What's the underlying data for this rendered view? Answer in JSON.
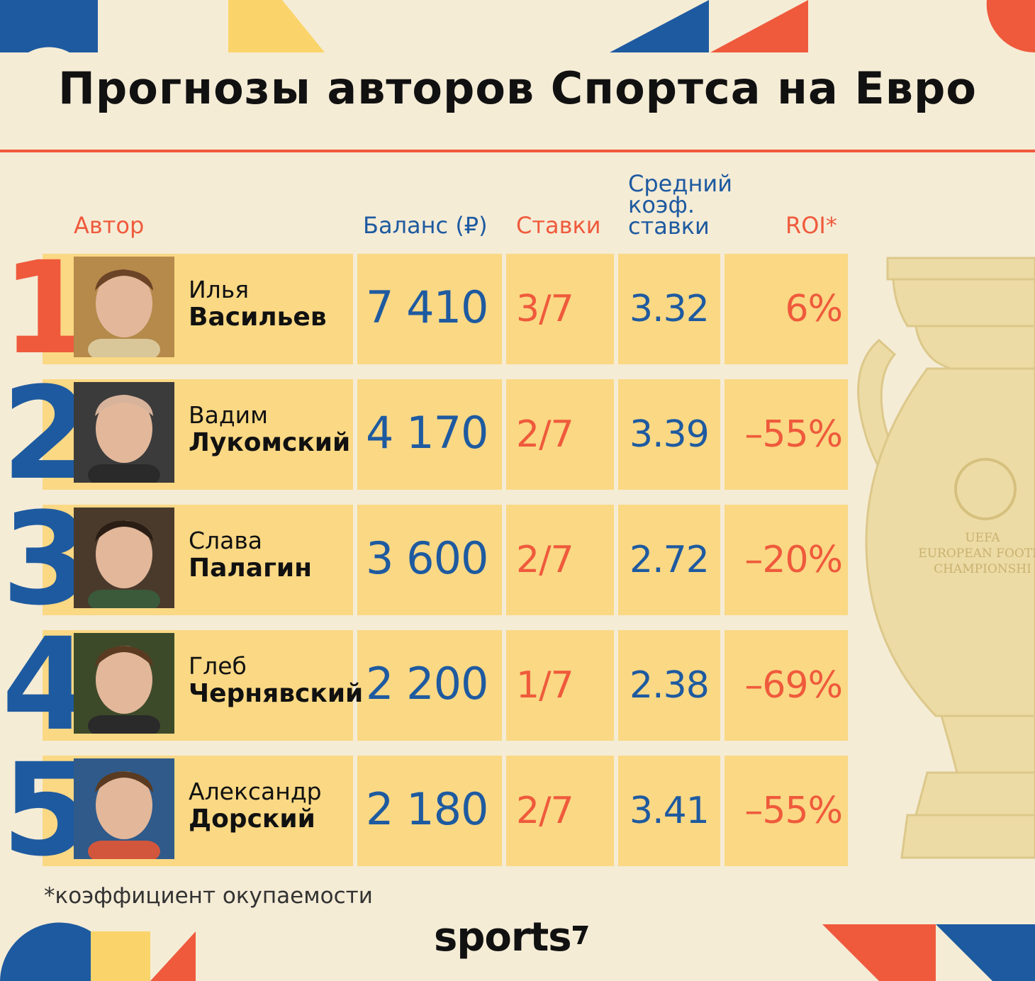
{
  "title": "Прогнозы авторов Спортса на Евро",
  "headers": {
    "author": "Автор",
    "balance": "Баланс (₽)",
    "bets": "Ставки",
    "avg_odds_1": "Средний",
    "avg_odds_2": "коэф.",
    "avg_odds_3": "ставки",
    "roi": "ROI*"
  },
  "rows": [
    {
      "rank": "1",
      "first_name": "Илья",
      "last_name": "Васильев",
      "balance": "7 410",
      "bets": "3/7",
      "odds": "3.32",
      "roi": "6%"
    },
    {
      "rank": "2",
      "first_name": "Вадим",
      "last_name": "Лукомский",
      "balance": "4 170",
      "bets": "2/7",
      "odds": "3.39",
      "roi": "–55%"
    },
    {
      "rank": "3",
      "first_name": "Слава",
      "last_name": "Палагин",
      "balance": "3 600",
      "bets": "2/7",
      "odds": "2.72",
      "roi": "–20%"
    },
    {
      "rank": "4",
      "first_name": "Глеб",
      "last_name": "Чернявский",
      "balance": "2 200",
      "bets": "1/7",
      "odds": "2.38",
      "roi": "–69%"
    },
    {
      "rank": "5",
      "first_name": "Александр",
      "last_name": "Дорский",
      "balance": "2 180",
      "bets": "2/7",
      "odds": "3.41",
      "roi": "–55%"
    }
  ],
  "footnote": "*коэффициент окупаемости",
  "logo": "sports",
  "trophy_text": [
    "UEFA",
    "EUROPEAN FOOTB",
    "CHAMPIONSHI"
  ],
  "colors": {
    "background": "#f5ecd6",
    "cell": "#fad884",
    "blue": "#1e5aa0",
    "red": "#ef5a3c",
    "yellow": "#fad46a"
  },
  "rank_colors": [
    "red",
    "blue",
    "blue",
    "blue",
    "blue"
  ]
}
